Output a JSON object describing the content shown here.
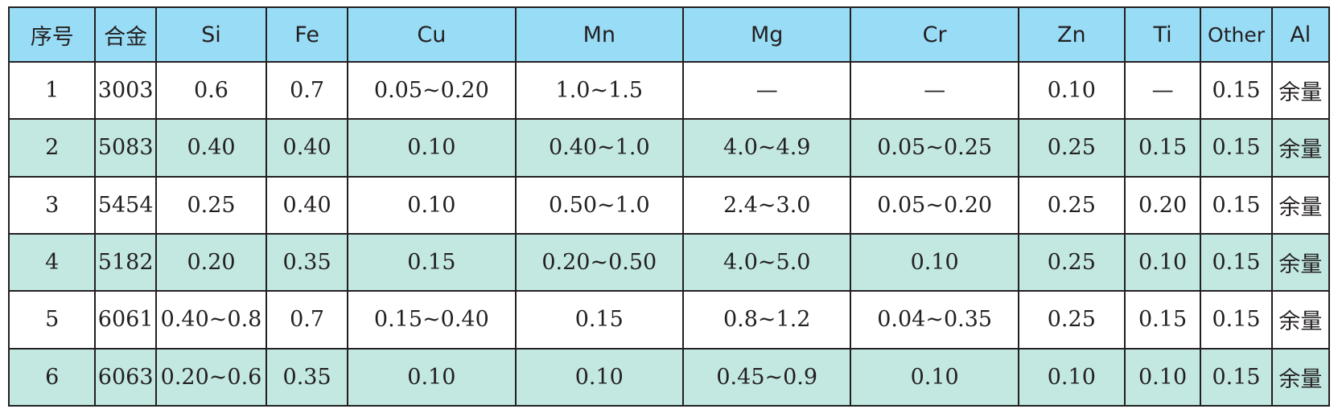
{
  "columns": [
    "序号",
    "合金",
    "Si",
    "Fe",
    "Cu",
    "Mn",
    "Mg",
    "Cr",
    "Zn",
    "Ti",
    "Other",
    "Al"
  ],
  "rows": [
    [
      "1",
      "3003",
      "0.6",
      "0.7",
      "0.05~0.20",
      "1.0~1.5",
      "—",
      "—",
      "0.10",
      "—",
      "0.15",
      "余量"
    ],
    [
      "2",
      "5083",
      "0.40",
      "0.40",
      "0.10",
      "0.40~1.0",
      "4.0~4.9",
      "0.05~0.25",
      "0.25",
      "0.15",
      "0.15",
      "余量"
    ],
    [
      "3",
      "5454",
      "0.25",
      "0.40",
      "0.10",
      "0.50~1.0",
      "2.4~3.0",
      "0.05~0.20",
      "0.25",
      "0.20",
      "0.15",
      "余量"
    ],
    [
      "4",
      "5182",
      "0.20",
      "0.35",
      "0.15",
      "0.20~0.50",
      "4.0~5.0",
      "0.10",
      "0.25",
      "0.10",
      "0.15",
      "余量"
    ],
    [
      "5",
      "6061",
      "0.40~0.8",
      "0.7",
      "0.15~0.40",
      "0.15",
      "0.8~1.2",
      "0.04~0.35",
      "0.25",
      "0.15",
      "0.15",
      "余量"
    ],
    [
      "6",
      "6063",
      "0.20~0.6",
      "0.35",
      "0.10",
      "0.10",
      "0.45~0.9",
      "0.10",
      "0.10",
      "0.10",
      "0.15",
      "余量"
    ]
  ],
  "colors": {
    "header_bg": "#99dcf6",
    "alt_row_bg": "#c2e8e1",
    "plain_row_bg": "#ffffff",
    "border": "#231f20"
  }
}
